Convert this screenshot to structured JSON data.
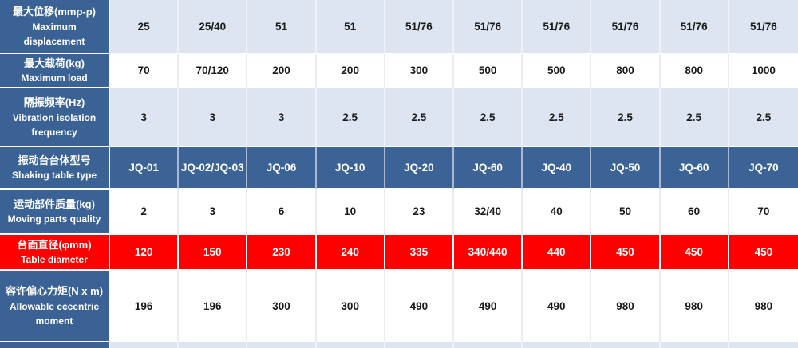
{
  "chart_data": {
    "type": "table",
    "title": "Shaking table specifications",
    "columns": 10,
    "colors": {
      "header_blue": "#3a6294",
      "row_lightblue": "#dce5f1",
      "highlight_red": "#fe0000",
      "label_text": "#ffffff",
      "value_text": "#1a1a1a"
    },
    "rows": [
      {
        "label_zh": "最大位移(mmp-p)",
        "label_en": "Maximum displacement",
        "style": "lightblue",
        "values": [
          "25",
          "25/40",
          "51",
          "51",
          "51/76",
          "51/76",
          "51/76",
          "51/76",
          "51/76",
          "51/76"
        ]
      },
      {
        "label_zh": "最大载荷(kg)",
        "label_en": "Maximum load",
        "style": "white",
        "values": [
          "70",
          "70/120",
          "200",
          "200",
          "300",
          "500",
          "500",
          "800",
          "800",
          "1000"
        ]
      },
      {
        "label_zh": "隔振频率(Hz)",
        "label_en": "Vibration isolation frequency",
        "style": "lightblue",
        "values": [
          "3",
          "3",
          "3",
          "2.5",
          "2.5",
          "2.5",
          "2.5",
          "2.5",
          "2.5",
          "2.5"
        ]
      },
      {
        "label_zh": "振动台台体型号",
        "label_en": "Shaking table type",
        "style": "blue",
        "values": [
          "JQ-01",
          "JQ-02/JQ-03",
          "JQ-06",
          "JQ-10",
          "JQ-20",
          "JQ-60",
          "JQ-40",
          "JQ-50",
          "JQ-60",
          "JQ-70"
        ]
      },
      {
        "label_zh": "运动部件质量(kg)",
        "label_en": "Moving parts quality",
        "style": "white",
        "values": [
          "2",
          "3",
          "6",
          "10",
          "23",
          "32/40",
          "40",
          "50",
          "60",
          "70"
        ]
      },
      {
        "label_zh": "台面直径(φmm)",
        "label_en": "Table diameter",
        "style": "red",
        "values": [
          "120",
          "150",
          "230",
          "240",
          "335",
          "340/440",
          "440",
          "450",
          "450",
          "450"
        ]
      },
      {
        "label_zh": "容许偏心力矩(N x m)",
        "label_en": "Allowable eccentric moment",
        "style": "white",
        "values": [
          "196",
          "196",
          "300",
          "300",
          "490",
          "490",
          "490",
          "980",
          "980",
          "980"
        ]
      },
      {
        "label_zh": "",
        "label_en": "",
        "style": "partial",
        "values": [
          "",
          "",
          "",
          "",
          "",
          "",
          "",
          "",
          "",
          ""
        ]
      }
    ]
  }
}
